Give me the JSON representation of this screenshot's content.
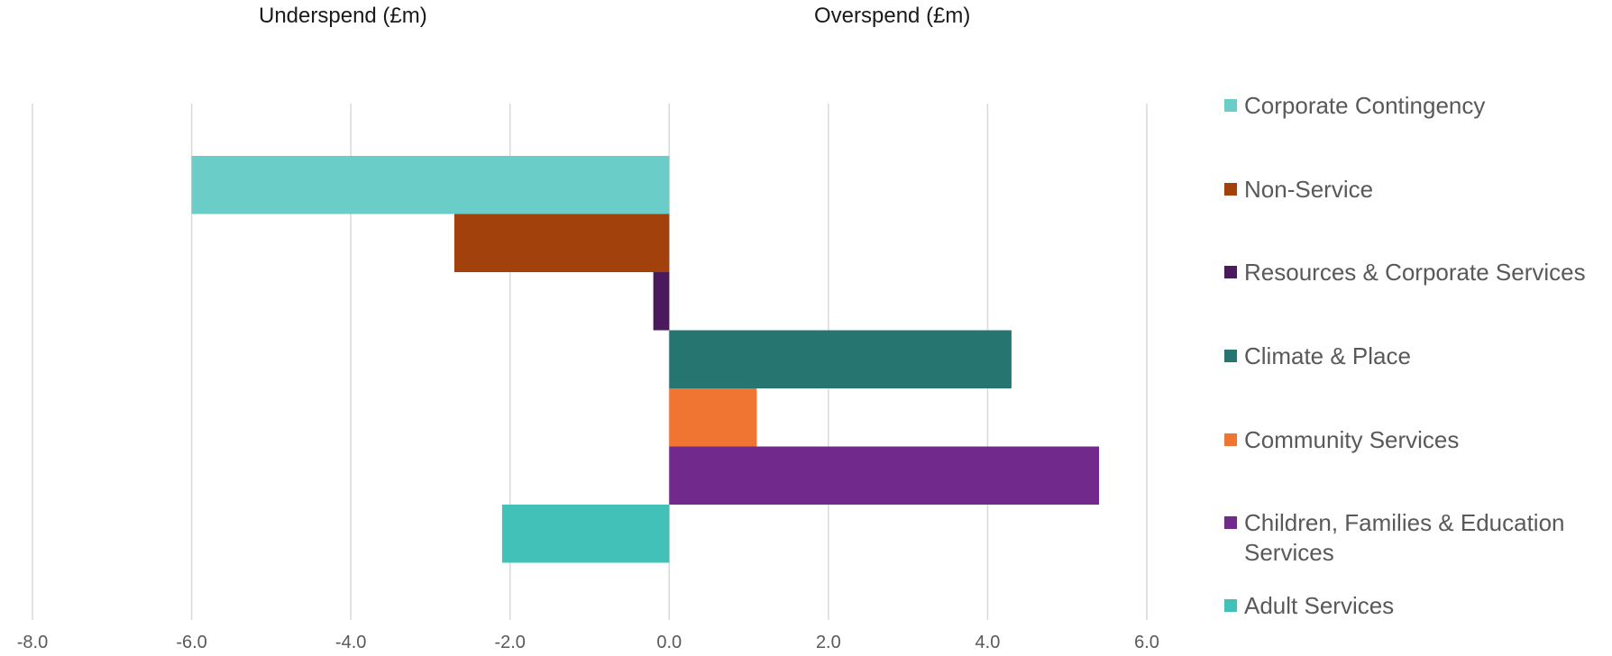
{
  "headers": {
    "underspend": "Underspend (£m)",
    "overspend": "Overspend (£m)"
  },
  "chart_data": {
    "type": "bar",
    "orientation": "horizontal",
    "xlim": [
      -8,
      6
    ],
    "ticks": [
      -8,
      -6,
      -4,
      -2,
      0,
      2,
      4,
      6
    ],
    "tick_labels": [
      "-8.0",
      "-6.0",
      "-4.0",
      "-2.0",
      "0.0",
      "2.0",
      "4.0",
      "6.0"
    ],
    "grid": "vertical",
    "legend_position": "right",
    "series": [
      {
        "name": "Corporate Contingency",
        "value": -6.0,
        "color": "#6BCDC8"
      },
      {
        "name": "Non-Service",
        "value": -2.7,
        "color": "#A3410C"
      },
      {
        "name": "Resources & Corporate Services",
        "value": -0.2,
        "color": "#4A1A5C"
      },
      {
        "name": "Climate & Place",
        "value": 4.3,
        "color": "#267570"
      },
      {
        "name": "Community Services",
        "value": 1.1,
        "color": "#F07533"
      },
      {
        "name": "Children, Families & Education Services",
        "value": 5.4,
        "color": "#712A8C"
      },
      {
        "name": "Adult Services",
        "value": -2.1,
        "color": "#41C1B8"
      }
    ]
  }
}
